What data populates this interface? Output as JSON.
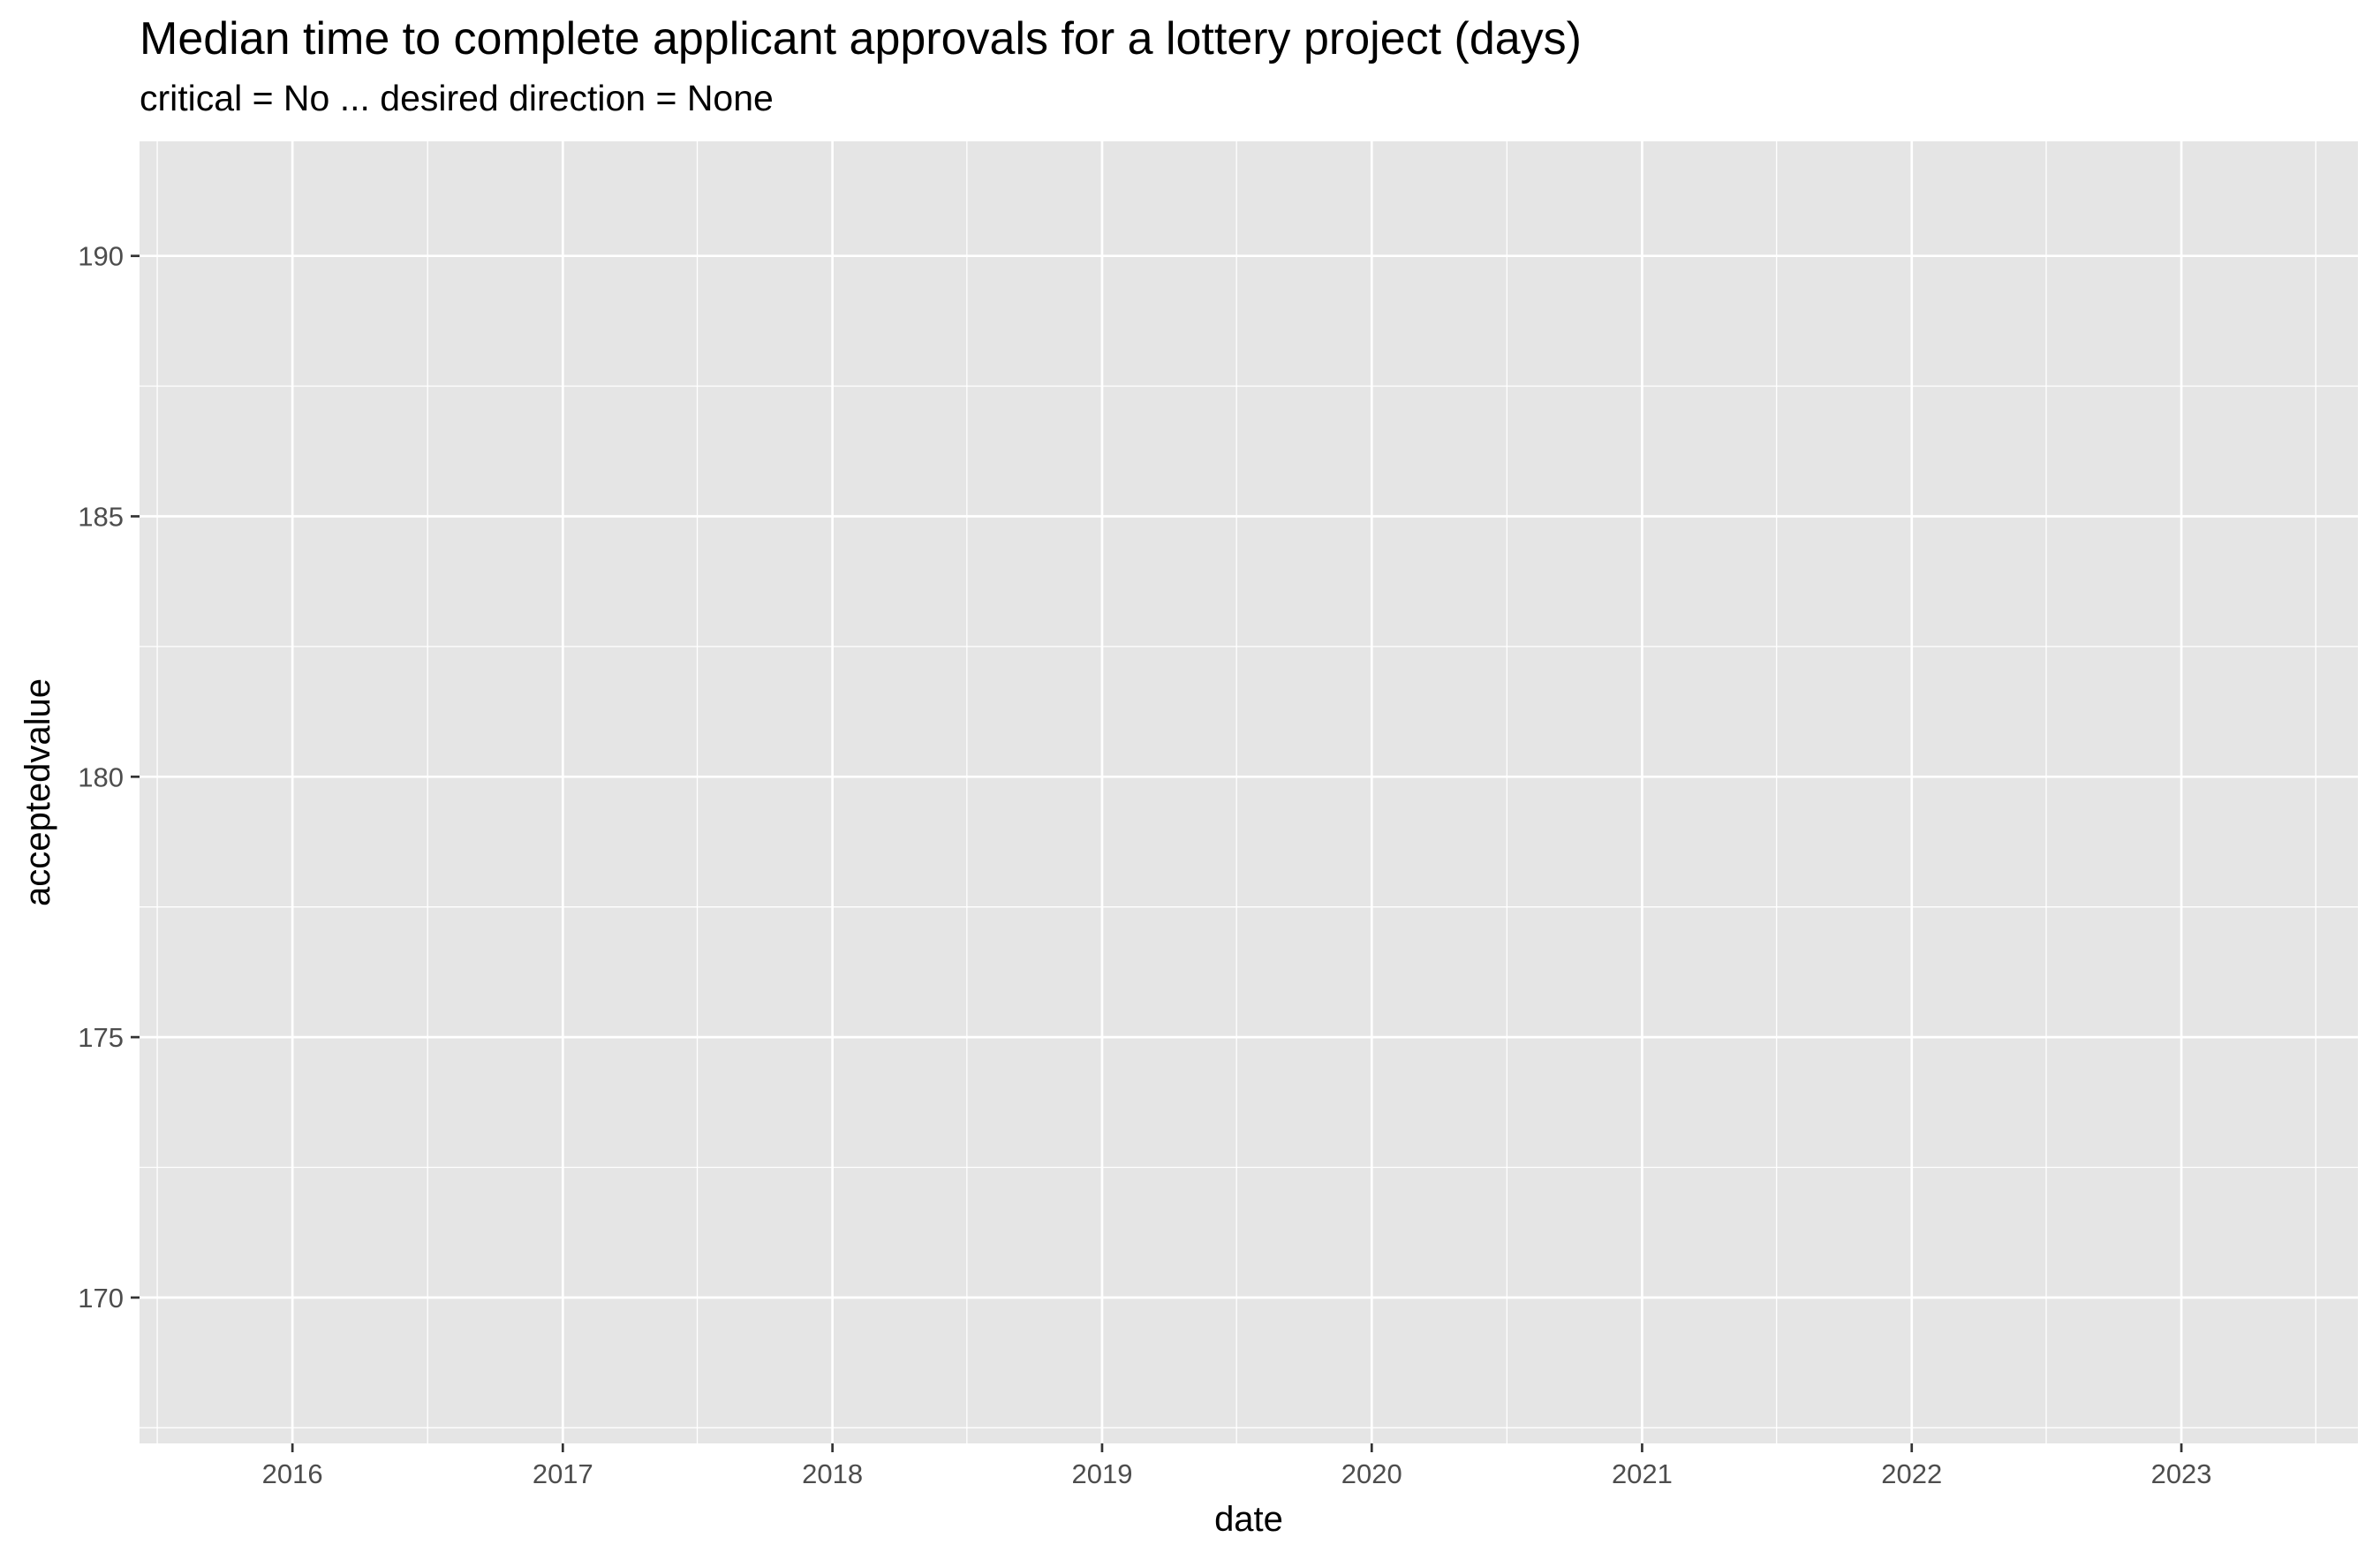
{
  "chart_data": {
    "type": "line",
    "title": "Median time to complete applicant approvals for a lottery project (days)",
    "subtitle": "critical = No ... desired direction = None",
    "xlabel": "date",
    "ylabel": "acceptedvalue",
    "x_ticks": [
      "2016",
      "2017",
      "2018",
      "2019",
      "2020",
      "2021",
      "2022",
      "2023"
    ],
    "y_ticks": [
      170,
      175,
      180,
      185,
      190
    ],
    "xlim": [
      "2015-06-08",
      "2023-08-28"
    ],
    "ylim": [
      167.2,
      192.2
    ],
    "series": [],
    "grid": true,
    "legend": "none",
    "colors": {
      "panel": "#e5e5e5",
      "grid": "#ffffff",
      "tick_text": "#4d4d4d",
      "tick_mark": "#333333"
    }
  }
}
